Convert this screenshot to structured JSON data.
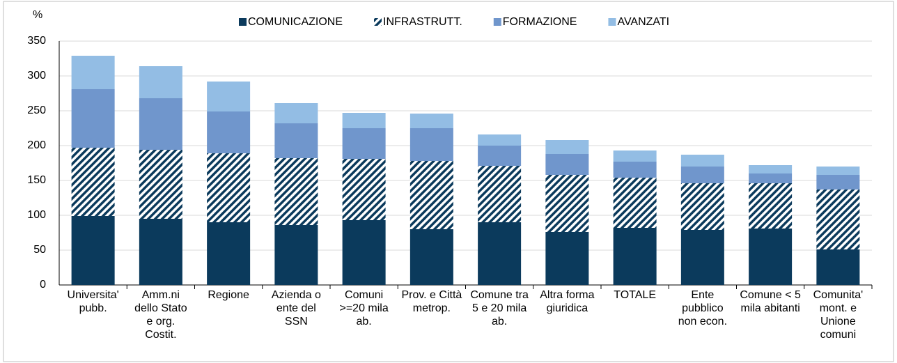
{
  "chart_data": {
    "type": "stacked_bar",
    "y_label": "%",
    "categories": [
      "Universita'\npubb.",
      "Amm.ni\ndello Stato\ne org.\nCostit.",
      "Regione",
      "Azienda o\nente del\nSSN",
      "Comuni\n>=20 mila\nab.",
      "Prov. e Città\nmetrop.",
      "Comune tra\n5 e 20 mila\nab.",
      "Altra forma\ngiuridica",
      "TOTALE",
      "Ente\npubblico\nnon econ.",
      "Comune < 5\nmila abitanti",
      "Comunita'\nmont. e\nUnione\ncomuni"
    ],
    "series": [
      {
        "name": "COMUNICAZIONE",
        "color": "#0b3a5c",
        "values": [
          99,
          95,
          90,
          86,
          93,
          80,
          90,
          76,
          82,
          79,
          81,
          51
        ]
      },
      {
        "name": "INFRASTRUTT.",
        "color": "#0b3a5c",
        "hatch": true,
        "values": [
          98,
          99,
          99,
          96,
          88,
          98,
          81,
          82,
          72,
          67,
          65,
          86
        ]
      },
      {
        "name": "FORMAZIONE",
        "color": "#7096cc",
        "values": [
          84,
          74,
          60,
          50,
          44,
          47,
          29,
          30,
          23,
          24,
          14,
          21
        ]
      },
      {
        "name": "AVANZATI",
        "color": "#93bde4",
        "values": [
          48,
          46,
          43,
          29,
          22,
          21,
          16,
          20,
          16,
          17,
          12,
          12
        ]
      }
    ],
    "ylim": [
      0,
      350
    ],
    "yticks": [
      0,
      50,
      100,
      150,
      200,
      250,
      300,
      350
    ],
    "grid": true
  }
}
